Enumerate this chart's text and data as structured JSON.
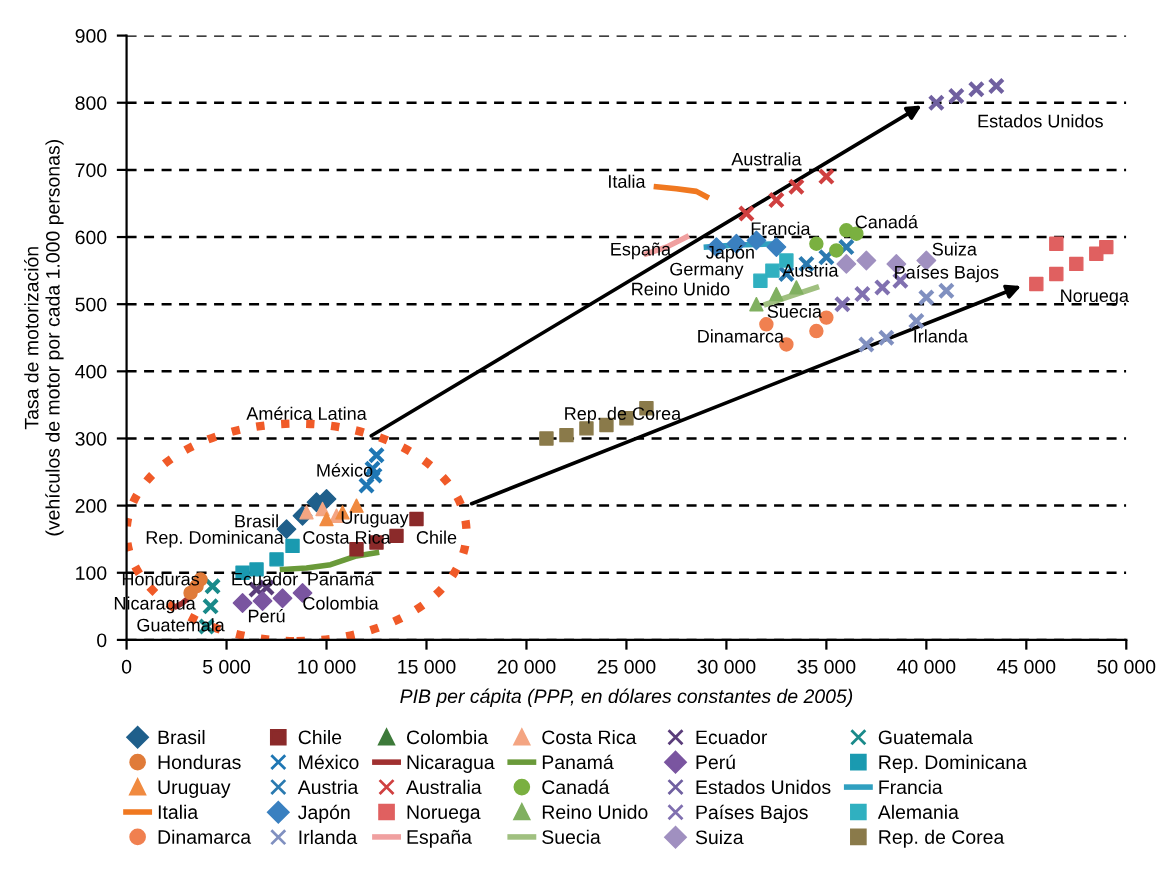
{
  "chart_data": {
    "type": "scatter",
    "xlabel": "PIB per cápita (PPP, en dólares constantes de 2005)",
    "ylabel": "Tasa de motorización\n(vehículos de motor por cada 1.000 personas)",
    "xlim": [
      0,
      50000
    ],
    "xticks": [
      0,
      {
        "value": 5000,
        "label": "5 000"
      },
      {
        "value": 10000,
        "label": "10 000"
      },
      {
        "value": 15000,
        "label": "15 000"
      },
      {
        "value": 20000,
        "label": "20 000"
      },
      {
        "value": 25000,
        "label": "25 000"
      },
      {
        "value": 30000,
        "label": "30 000"
      },
      {
        "value": 35000,
        "label": "35 000"
      },
      {
        "value": 40000,
        "label": "40 000"
      },
      {
        "value": 45000,
        "label": "45 000"
      },
      {
        "value": 50000,
        "label": "50 000"
      }
    ],
    "ylim": [
      0,
      900
    ],
    "yticks": [
      0,
      100,
      200,
      300,
      400,
      500,
      600,
      700,
      800,
      900
    ],
    "grid": "y",
    "legend": "bottom",
    "series": [
      {
        "name": "Brasil",
        "color": "#1f5f8b",
        "marker": "diamond",
        "x": [
          8000,
          8800,
          9500,
          10000
        ],
        "values": [
          165,
          185,
          205,
          210
        ]
      },
      {
        "name": "Chile",
        "color": "#8b2a2a",
        "marker": "square",
        "x": [
          11500,
          12500,
          13500,
          14500
        ],
        "values": [
          135,
          145,
          155,
          180
        ]
      },
      {
        "name": "Colombia",
        "color": "#3d7a3a",
        "marker": "triangle"
      },
      {
        "name": "Costa Rica",
        "color": "#f4a582",
        "marker": "triangle",
        "x": [
          9000,
          9800,
          10500
        ],
        "values": [
          190,
          195,
          185
        ]
      },
      {
        "name": "Ecuador",
        "color": "#5a3d7a",
        "marker": "cross",
        "x": [
          6500,
          7000
        ],
        "values": [
          75,
          78
        ]
      },
      {
        "name": "Guatemala",
        "color": "#1a8a8a",
        "marker": "cross",
        "x": [
          4000,
          4200,
          4300
        ],
        "values": [
          20,
          50,
          80
        ]
      },
      {
        "name": "Honduras",
        "color": "#e07b39",
        "marker": "circle",
        "x": [
          3200,
          3500,
          3700
        ],
        "values": [
          70,
          80,
          90
        ]
      },
      {
        "name": "México",
        "color": "#1f77b4",
        "marker": "cross",
        "x": [
          12000,
          12300,
          12400,
          12500
        ],
        "values": [
          230,
          255,
          245,
          275
        ]
      },
      {
        "name": "Nicaragua",
        "color": "#a03030",
        "type": "line",
        "marker": "none",
        "x": [
          2500,
          2800,
          3000
        ],
        "values": [
          50,
          55,
          60
        ]
      },
      {
        "name": "Panamá",
        "color": "#6a9a3a",
        "type": "line",
        "marker": "none",
        "x": [
          7800,
          9000,
          10200,
          11500,
          12500
        ],
        "values": [
          105,
          107,
          112,
          125,
          130
        ]
      },
      {
        "name": "Perú",
        "color": "#7a55a0",
        "marker": "diamond",
        "x": [
          5800,
          6800,
          7800,
          8800
        ],
        "values": [
          55,
          58,
          62,
          70
        ]
      },
      {
        "name": "Rep. Dominicana",
        "color": "#1a9ab0",
        "marker": "square",
        "x": [
          5800,
          6500,
          7500,
          8300
        ],
        "values": [
          100,
          105,
          120,
          140
        ]
      },
      {
        "name": "Uruguay",
        "color": "#f08a40",
        "marker": "triangle",
        "x": [
          10000,
          10800,
          11500
        ],
        "values": [
          180,
          190,
          200
        ]
      },
      {
        "name": "Austria",
        "color": "#2a7ab0",
        "marker": "cross",
        "x": [
          33000,
          34000,
          35000,
          36000
        ],
        "values": [
          545,
          560,
          570,
          585
        ]
      },
      {
        "name": "Australia",
        "color": "#d04040",
        "marker": "cross",
        "x": [
          31000,
          32500,
          33500,
          35000
        ],
        "values": [
          635,
          655,
          675,
          690
        ]
      },
      {
        "name": "Canadá",
        "color": "#7ab040",
        "marker": "circle",
        "x": [
          34500,
          35500,
          36000,
          36500
        ],
        "values": [
          590,
          580,
          610,
          605
        ]
      },
      {
        "name": "Estados Unidos",
        "color": "#7060a0",
        "marker": "cross",
        "x": [
          40500,
          41500,
          42500,
          43500
        ],
        "values": [
          800,
          810,
          820,
          825
        ]
      },
      {
        "name": "Francia",
        "color": "#30a0c0",
        "type": "line",
        "marker": "none",
        "x": [
          29000,
          30500,
          32500
        ],
        "values": [
          585,
          588,
          590
        ]
      },
      {
        "name": "Italia",
        "color": "#f07820",
        "type": "line",
        "marker": "none",
        "x": [
          26500,
          27500,
          28500,
          29000
        ],
        "values": [
          675,
          672,
          668,
          660
        ]
      },
      {
        "name": "Japón",
        "color": "#3a80c0",
        "marker": "diamond",
        "x": [
          29500,
          30500,
          31500,
          32500
        ],
        "values": [
          585,
          590,
          595,
          585
        ]
      },
      {
        "name": "Noruega",
        "color": "#e06060",
        "marker": "square",
        "x": [
          45500,
          46500,
          47500,
          48500,
          49000,
          46500
        ],
        "values": [
          530,
          545,
          560,
          575,
          585,
          590
        ]
      },
      {
        "name": "Reino Unido",
        "color": "#80b060",
        "marker": "triangle",
        "x": [
          31500,
          32500,
          33500
        ],
        "values": [
          500,
          515,
          525
        ]
      },
      {
        "name": "Países Bajos",
        "color": "#8070b0",
        "marker": "cross",
        "x": [
          35800,
          36800,
          37800,
          38700
        ],
        "values": [
          500,
          515,
          525,
          535
        ]
      },
      {
        "name": "Alemania",
        "color": "#30b0c0",
        "marker": "square",
        "x": [
          31700,
          32300,
          33000
        ],
        "values": [
          535,
          550,
          565
        ]
      },
      {
        "name": "Dinamarca",
        "color": "#f08050",
        "marker": "circle",
        "x": [
          32000,
          33000,
          34500,
          35000
        ],
        "values": [
          470,
          440,
          460,
          480
        ]
      },
      {
        "name": "Irlanda",
        "color": "#8090c0",
        "marker": "cross",
        "x": [
          37000,
          38000,
          39500,
          40000,
          41000
        ],
        "values": [
          440,
          450,
          475,
          510,
          520
        ]
      },
      {
        "name": "España",
        "color": "#f0a0a0",
        "type": "line",
        "marker": "none",
        "x": [
          26000,
          27000,
          28000
        ],
        "values": [
          575,
          585,
          600
        ]
      },
      {
        "name": "Suecia",
        "color": "#a0c080",
        "type": "line",
        "marker": "none",
        "x": [
          32000,
          33200,
          34500
        ],
        "values": [
          500,
          512,
          525
        ]
      },
      {
        "name": "Suiza",
        "color": "#a090c0",
        "marker": "diamond",
        "x": [
          36000,
          37000,
          38500,
          40000
        ],
        "values": [
          560,
          565,
          560,
          565
        ]
      },
      {
        "name": "Rep. de Corea",
        "color": "#8a7a4a",
        "marker": "square",
        "x": [
          21000,
          22000,
          23000,
          24000,
          25000,
          26000
        ],
        "values": [
          300,
          305,
          315,
          320,
          330,
          345
        ]
      }
    ],
    "annotations": [
      "Estados Unidos",
      "Italia",
      "Australia",
      "Francia",
      "Canadá",
      "España",
      "Japón",
      "Germany",
      "Austria",
      "Reino Unido",
      "Suecia",
      "Suiza",
      "Países Bajos",
      "Noruega",
      "Dinamarca",
      "Irlanda",
      "Rep. de Corea",
      "América Latina",
      "México",
      "Brasil",
      "Uruguay",
      "Rep. Dominicana",
      "Costa Rica",
      "Chile",
      "Honduras",
      "Ecuador",
      "Panamá",
      "Nicaragua",
      "Colombia",
      "Perú",
      "Guatemala"
    ]
  }
}
